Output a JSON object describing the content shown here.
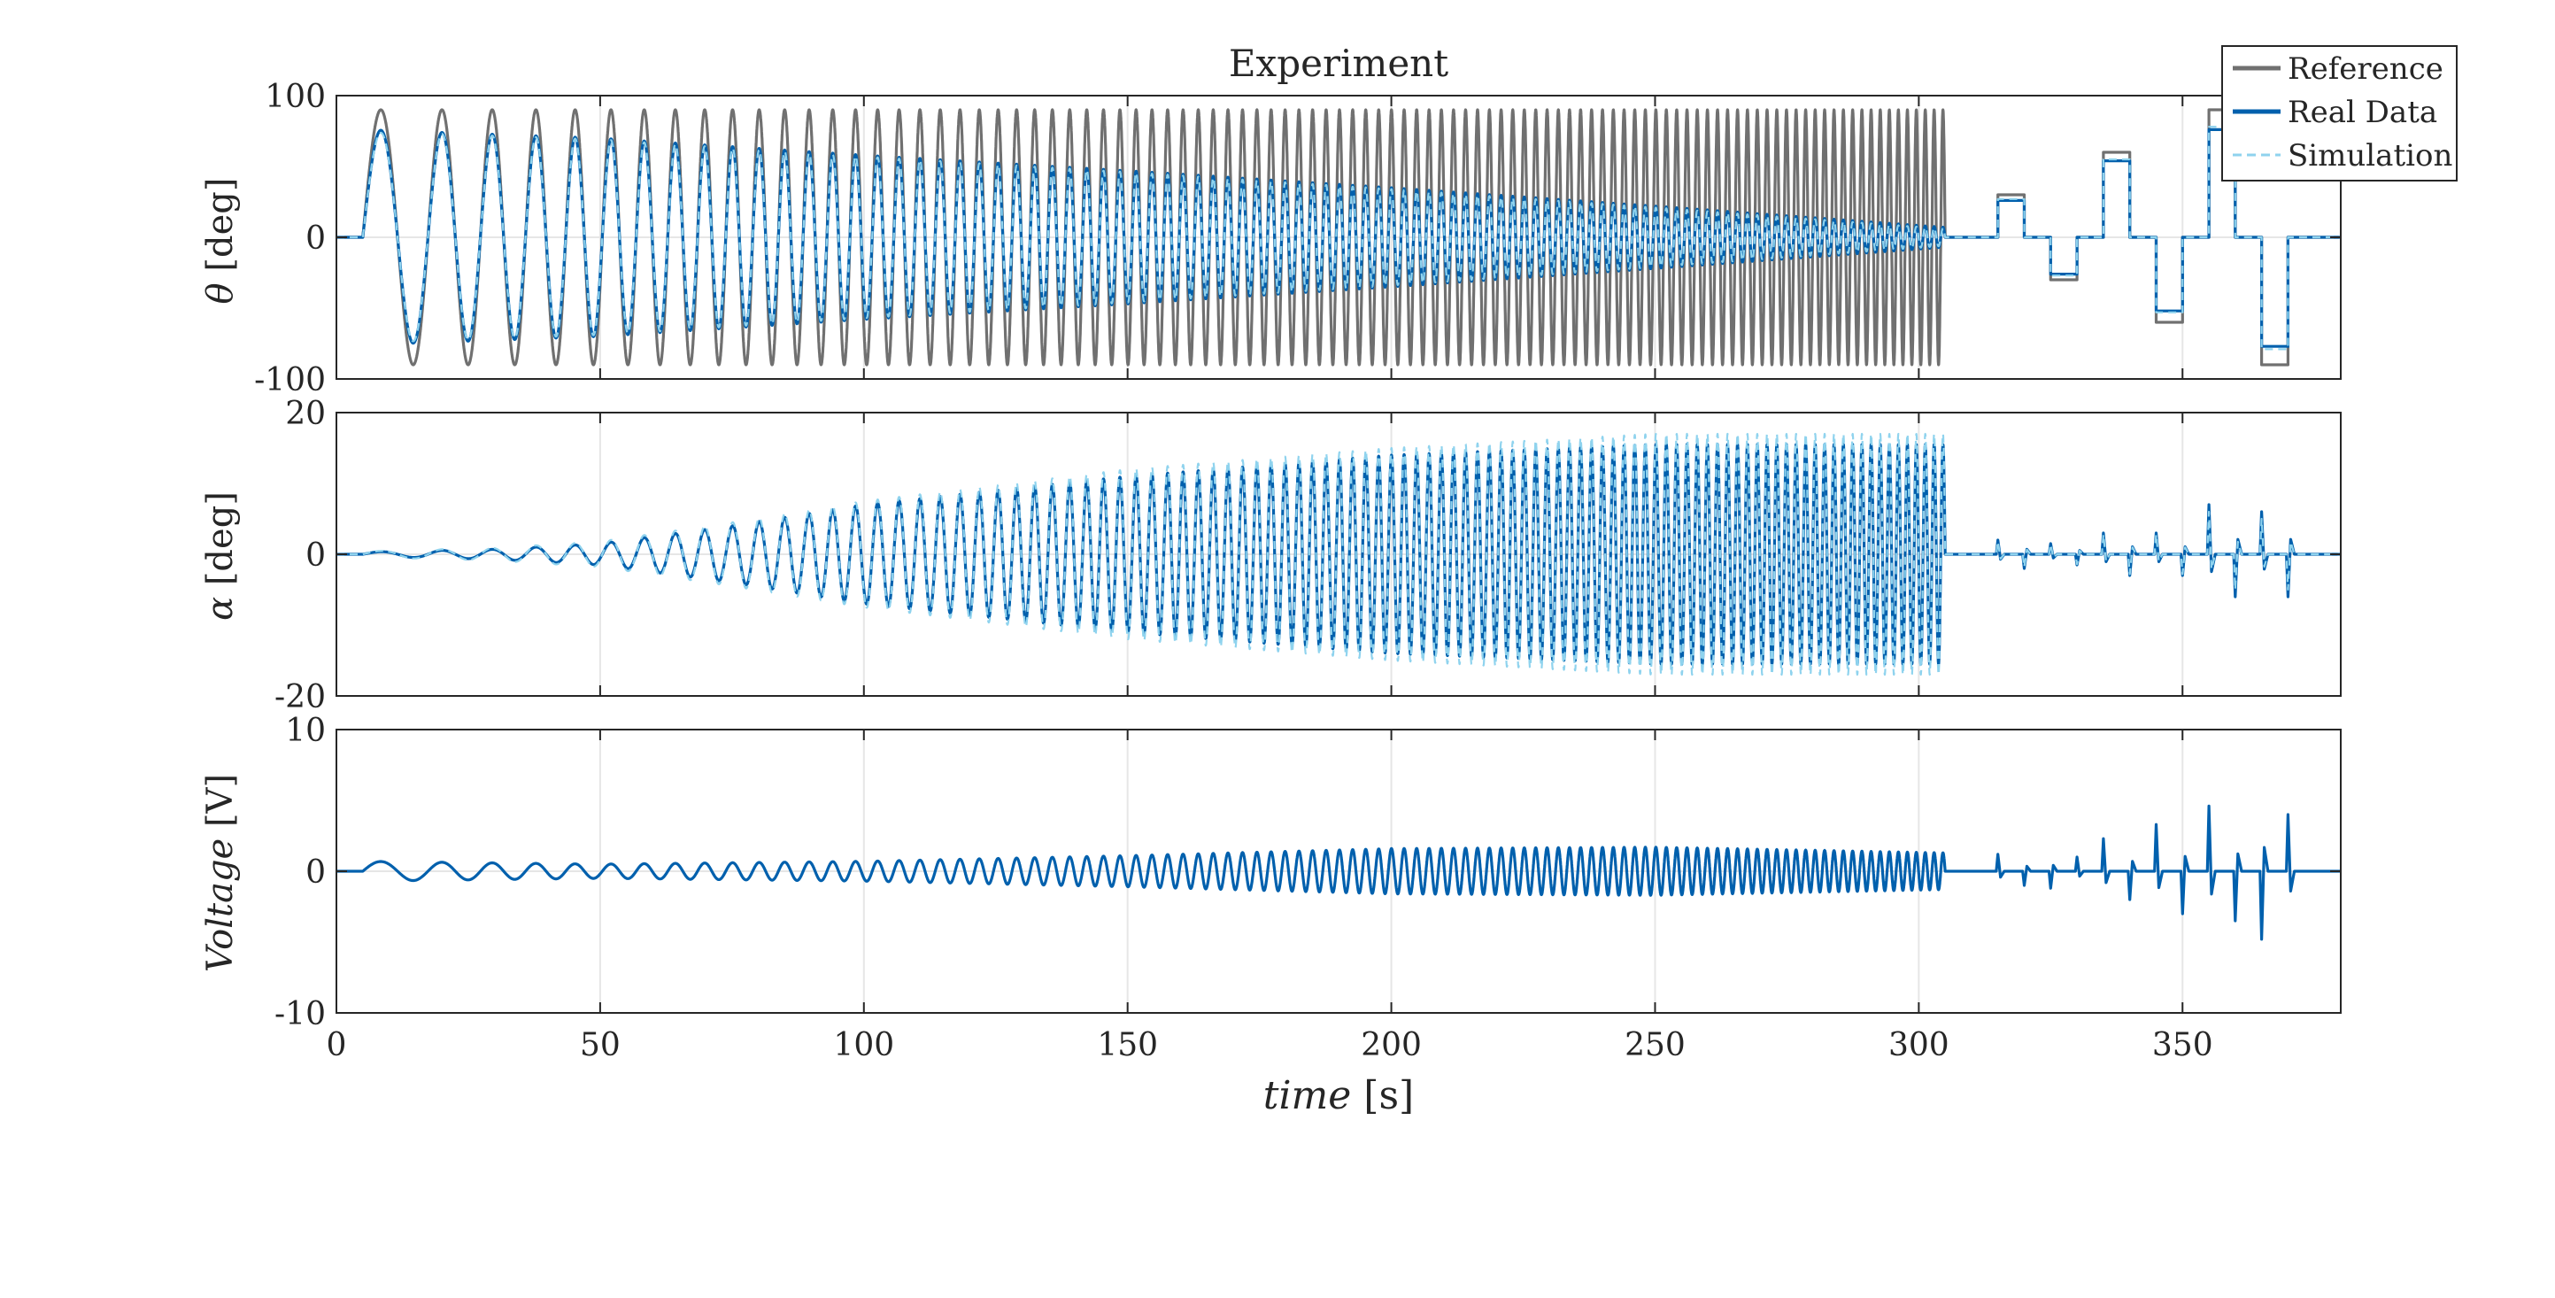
{
  "figure": {
    "title": "Experiment"
  },
  "colors": {
    "reference": "#707070",
    "real_data": "#0060ad",
    "simulation": "#8fd3ee",
    "axes": "#262626",
    "grid": "#e6e6e6"
  },
  "legend": {
    "placement": "top-right",
    "entries": [
      {
        "label": "Reference",
        "style": "solid-gray"
      },
      {
        "label": "Real Data",
        "style": "solid-blue"
      },
      {
        "label": "Simulation",
        "style": "dashed-lightblue"
      }
    ]
  },
  "x_axis": {
    "label": "time [s]",
    "label_parts": {
      "var": "time",
      "unit": "[s]"
    },
    "xlim": [
      0,
      380
    ],
    "ticks": [
      0,
      50,
      100,
      150,
      200,
      250,
      300,
      350
    ],
    "tick_labels": [
      "0",
      "50",
      "100",
      "150",
      "200",
      "250",
      "300",
      "350"
    ]
  },
  "chart_data": [
    {
      "type": "line",
      "title": "Experiment",
      "ylabel": "θ [deg]",
      "ylabel_parts": {
        "var": "θ",
        "unit": "[deg]"
      },
      "ylim": [
        -100,
        100
      ],
      "yticks": [
        -100,
        0,
        100
      ],
      "ytick_labels": [
        "-100",
        "0",
        "100"
      ],
      "grid": true,
      "series": [
        {
          "name": "Reference",
          "kind": "chirp",
          "start": 5,
          "end": 305,
          "f0": 0.07,
          "f1": 0.6,
          "envelope": [
            [
              5,
              90
            ],
            [
              305,
              90
            ]
          ],
          "steps": [
            [
              305,
              0
            ],
            [
              315,
              30
            ],
            [
              320,
              0
            ],
            [
              325,
              -30
            ],
            [
              330,
              0
            ],
            [
              335,
              60
            ],
            [
              340,
              0
            ],
            [
              345,
              -60
            ],
            [
              350,
              0
            ],
            [
              355,
              90
            ],
            [
              360,
              0
            ],
            [
              365,
              -90
            ],
            [
              370,
              0
            ],
            [
              380,
              0
            ]
          ]
        },
        {
          "name": "Real Data",
          "kind": "chirp",
          "start": 5,
          "end": 305,
          "f0": 0.07,
          "f1": 0.6,
          "envelope": [
            [
              5,
              76
            ],
            [
              20,
              74
            ],
            [
              50,
              70
            ],
            [
              100,
              58
            ],
            [
              150,
              47
            ],
            [
              200,
              35
            ],
            [
              250,
              22
            ],
            [
              305,
              7
            ]
          ],
          "steps": [
            [
              305,
              0
            ],
            [
              315,
              26
            ],
            [
              320,
              0
            ],
            [
              325,
              -26
            ],
            [
              330,
              0
            ],
            [
              335,
              54
            ],
            [
              340,
              0
            ],
            [
              345,
              -52
            ],
            [
              350,
              0
            ],
            [
              355,
              76
            ],
            [
              360,
              0
            ],
            [
              365,
              -77
            ],
            [
              370,
              0
            ],
            [
              380,
              0
            ]
          ]
        },
        {
          "name": "Simulation",
          "kind": "chirp",
          "start": 5,
          "end": 305,
          "f0": 0.07,
          "f1": 0.6,
          "envelope": [
            [
              5,
              74
            ],
            [
              20,
              73
            ],
            [
              50,
              69
            ],
            [
              100,
              57
            ],
            [
              150,
              46
            ],
            [
              200,
              34
            ],
            [
              250,
              21
            ],
            [
              305,
              6
            ]
          ],
          "steps": [
            [
              305,
              0
            ],
            [
              315,
              27
            ],
            [
              320,
              0
            ],
            [
              325,
              -27
            ],
            [
              330,
              0
            ],
            [
              335,
              55
            ],
            [
              340,
              0
            ],
            [
              345,
              -53
            ],
            [
              350,
              0
            ],
            [
              355,
              78
            ],
            [
              360,
              0
            ],
            [
              365,
              -79
            ],
            [
              370,
              0
            ],
            [
              380,
              0
            ]
          ]
        }
      ]
    },
    {
      "type": "line",
      "ylabel": "α [deg]",
      "ylabel_parts": {
        "var": "α",
        "unit": "[deg]"
      },
      "ylim": [
        -20,
        20
      ],
      "yticks": [
        -20,
        0,
        20
      ],
      "ytick_labels": [
        "-20",
        "0",
        "20"
      ],
      "grid": true,
      "series": [
        {
          "name": "Real Data",
          "kind": "chirp",
          "start": 5,
          "end": 305,
          "f0": 0.07,
          "f1": 0.6,
          "envelope": [
            [
              5,
              0.3
            ],
            [
              30,
              0.7
            ],
            [
              50,
              1.5
            ],
            [
              75,
              4
            ],
            [
              100,
              7
            ],
            [
              150,
              11
            ],
            [
              200,
              14
            ],
            [
              250,
              15.5
            ],
            [
              305,
              15.5
            ]
          ],
          "spikes": [
            [
              315,
              2
            ],
            [
              320,
              -2
            ],
            [
              325,
              1.5
            ],
            [
              330,
              -1.5
            ],
            [
              335,
              3
            ],
            [
              340,
              -3
            ],
            [
              345,
              3
            ],
            [
              350,
              -3
            ],
            [
              355,
              7
            ],
            [
              360,
              -6
            ],
            [
              365,
              6
            ],
            [
              370,
              -6
            ]
          ]
        },
        {
          "name": "Simulation",
          "kind": "chirp",
          "start": 5,
          "end": 305,
          "f0": 0.07,
          "f1": 0.6,
          "envelope": [
            [
              5,
              0.4
            ],
            [
              30,
              0.9
            ],
            [
              50,
              1.8
            ],
            [
              75,
              4.5
            ],
            [
              100,
              7.5
            ],
            [
              150,
              12
            ],
            [
              200,
              15
            ],
            [
              250,
              17
            ],
            [
              305,
              17
            ]
          ],
          "spikes": [
            [
              315,
              1.8
            ],
            [
              320,
              -1.8
            ],
            [
              325,
              1.4
            ],
            [
              330,
              -1.4
            ],
            [
              335,
              2.8
            ],
            [
              340,
              -2.8
            ],
            [
              345,
              2.8
            ],
            [
              350,
              -2.8
            ],
            [
              355,
              6
            ],
            [
              360,
              -5
            ],
            [
              365,
              5
            ],
            [
              370,
              -5
            ]
          ]
        }
      ]
    },
    {
      "type": "line",
      "ylabel": "Voltage [V]",
      "ylabel_parts": {
        "var": "Voltage",
        "unit": "[V]"
      },
      "ylim": [
        -10,
        10
      ],
      "yticks": [
        -10,
        0,
        10
      ],
      "ytick_labels": [
        "-10",
        "0",
        "10"
      ],
      "grid": true,
      "series": [
        {
          "name": "Real Data",
          "kind": "chirp",
          "start": 5,
          "end": 305,
          "f0": 0.07,
          "f1": 0.6,
          "envelope": [
            [
              5,
              0.7
            ],
            [
              50,
              0.5
            ],
            [
              100,
              0.7
            ],
            [
              150,
              1.1
            ],
            [
              200,
              1.6
            ],
            [
              250,
              1.7
            ],
            [
              305,
              1.3
            ]
          ],
          "spikes": [
            [
              315,
              1.2
            ],
            [
              320,
              -1
            ],
            [
              325,
              -1.2
            ],
            [
              330,
              1
            ],
            [
              335,
              2.3
            ],
            [
              340,
              -2
            ],
            [
              345,
              3.3
            ],
            [
              350,
              -3
            ],
            [
              355,
              4.6
            ],
            [
              360,
              -3.5
            ],
            [
              365,
              -4.8
            ],
            [
              370,
              4
            ]
          ]
        }
      ]
    }
  ]
}
